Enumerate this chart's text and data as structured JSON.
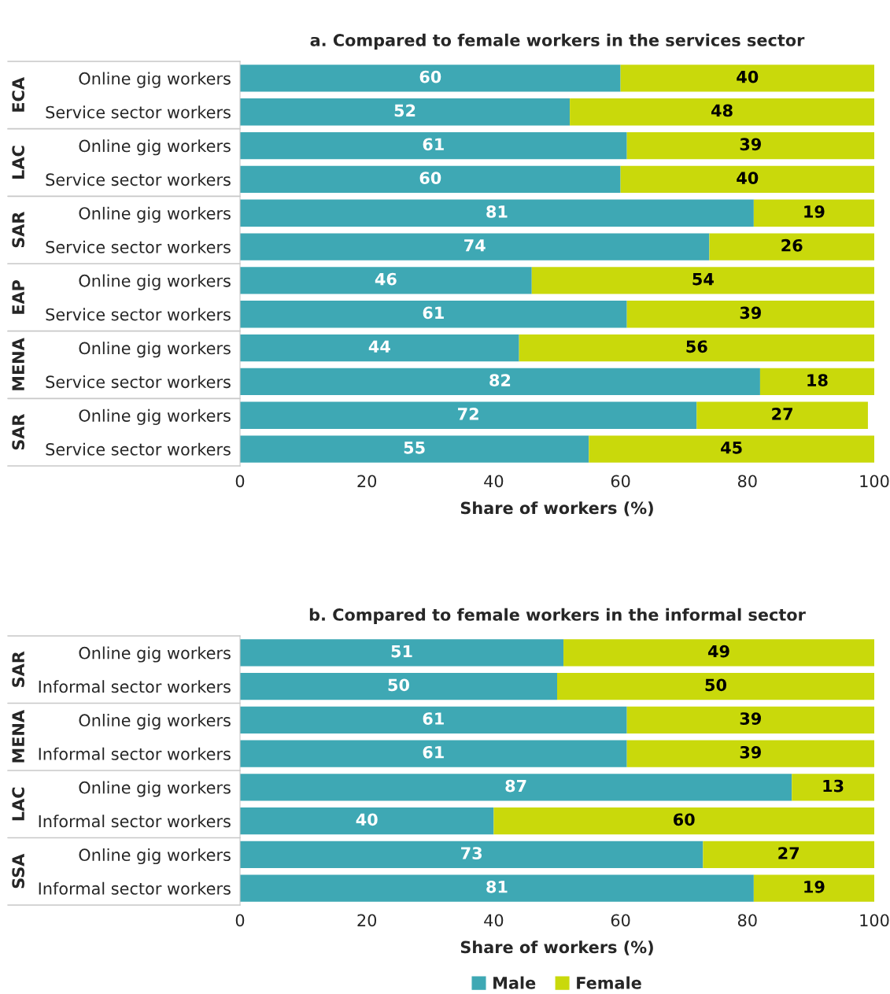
{
  "chart_data": [
    {
      "type": "bar",
      "orientation": "horizontal",
      "stacked": true,
      "title": "a. Compared to female workers in the services sector",
      "xlabel": "Share of workers (%)",
      "categories": [
        "Online gig workers",
        "Service sector workers",
        "Online gig workers",
        "Service sector workers",
        "Online gig workers",
        "Service sector workers",
        "Online gig workers",
        "Service sector workers",
        "Online gig workers",
        "Service sector workers",
        "Online gig workers",
        "Service sector workers"
      ],
      "annotations": [
        "ECA",
        "LAC",
        "SAR",
        "EAP",
        "MENA",
        "SAR"
      ],
      "series": [
        {
          "color": "#3ea8b4",
          "values": [
            60,
            52,
            61,
            60,
            81,
            74,
            46,
            61,
            44,
            82,
            72,
            55
          ]
        },
        {
          "color": "#c9d90b",
          "values": [
            40,
            48,
            39,
            40,
            19,
            26,
            54,
            39,
            56,
            18,
            27,
            45
          ]
        }
      ],
      "xlim": [
        0,
        100
      ],
      "xticks": [
        0,
        20,
        40,
        60,
        80,
        100
      ],
      "data_labels": true,
      "grid": false,
      "legend": false
    },
    {
      "type": "bar",
      "orientation": "horizontal",
      "stacked": true,
      "title": "b. Compared to female workers in the informal sector",
      "xlabel": "Share of workers (%)",
      "categories": [
        "Online gig workers",
        "Informal sector workers",
        "Online gig workers",
        "Informal sector workers",
        "Online gig workers",
        "Informal sector workers",
        "Online gig workers",
        "Informal sector workers"
      ],
      "annotations": [
        "SAR",
        "MENA",
        "LAC",
        "SSA"
      ],
      "series": [
        {
          "name": "Male",
          "color": "#3ea8b4",
          "values": [
            51,
            50,
            61,
            61,
            87,
            40,
            73,
            81
          ]
        },
        {
          "name": "Female",
          "color": "#c9d90b",
          "values": [
            49,
            50,
            39,
            39,
            13,
            60,
            27,
            19
          ]
        }
      ],
      "xlim": [
        0,
        100
      ],
      "xticks": [
        0,
        20,
        40,
        60,
        80,
        100
      ],
      "data_labels": true,
      "grid": false,
      "legend": "bottom"
    }
  ]
}
